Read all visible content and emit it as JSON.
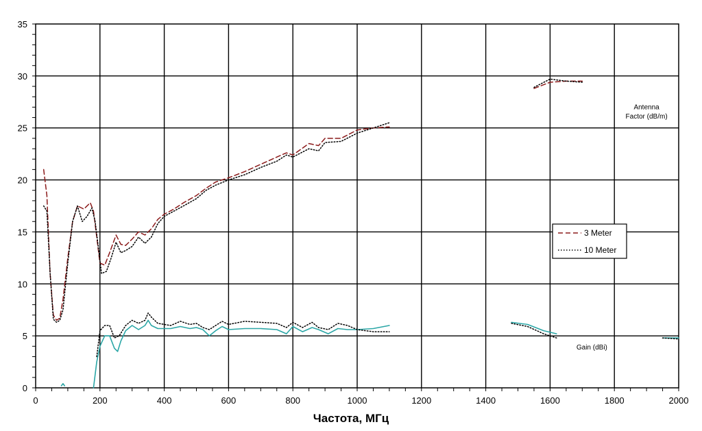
{
  "chart_data": {
    "type": "line",
    "title": "",
    "xlabel": "Частота, МГц",
    "ylabel": "",
    "xlim": [
      0,
      2000
    ],
    "ylim": [
      0,
      35
    ],
    "grid": true,
    "x_ticks": [
      0,
      200,
      400,
      600,
      800,
      1000,
      1200,
      1400,
      1600,
      1800,
      2000
    ],
    "y_ticks": [
      0,
      5,
      10,
      15,
      20,
      25,
      30,
      35
    ],
    "legend_position": "right",
    "legend": [
      {
        "label": "3 Meter",
        "style": "dashed",
        "color": "#8b1a1a"
      },
      {
        "label": "10 Meter",
        "style": "dotted",
        "color": "#000000"
      }
    ],
    "annotations": [
      {
        "text": "Antenna",
        "x": 1900,
        "y": 26.8
      },
      {
        "text": "Factor (dB/m)",
        "x": 1900,
        "y": 25.9
      },
      {
        "text": "Gain (dBi)",
        "x": 1730,
        "y": 3.7
      }
    ],
    "series": [
      {
        "name": "3 Meter",
        "group": "antenna-factor",
        "color": "#8b1a1a",
        "style": "dashed",
        "points": [
          [
            25,
            21.0
          ],
          [
            35,
            18.5
          ],
          [
            45,
            11.0
          ],
          [
            55,
            7.0
          ],
          [
            65,
            6.5
          ],
          [
            75,
            6.7
          ],
          [
            85,
            8.5
          ],
          [
            100,
            12.5
          ],
          [
            115,
            16.0
          ],
          [
            130,
            17.5
          ],
          [
            150,
            17.2
          ],
          [
            170,
            17.8
          ],
          [
            180,
            17.0
          ],
          [
            190,
            14.5
          ],
          [
            200,
            12.0
          ],
          [
            215,
            11.8
          ],
          [
            230,
            13.0
          ],
          [
            250,
            14.7
          ],
          [
            265,
            13.8
          ],
          [
            280,
            13.7
          ],
          [
            300,
            14.3
          ],
          [
            320,
            15.0
          ],
          [
            340,
            14.7
          ],
          [
            360,
            15.3
          ],
          [
            380,
            16.2
          ],
          [
            400,
            16.7
          ],
          [
            430,
            17.2
          ],
          [
            460,
            17.8
          ],
          [
            500,
            18.5
          ],
          [
            530,
            19.2
          ],
          [
            560,
            19.8
          ],
          [
            600,
            20.2
          ],
          [
            650,
            20.8
          ],
          [
            700,
            21.5
          ],
          [
            750,
            22.2
          ],
          [
            780,
            22.6
          ],
          [
            800,
            22.4
          ],
          [
            850,
            23.5
          ],
          [
            880,
            23.3
          ],
          [
            900,
            24.0
          ],
          [
            950,
            24.0
          ],
          [
            1000,
            24.8
          ],
          [
            1050,
            25.0
          ],
          [
            1100,
            25.1
          ],
          [
            1200,
            25.6
          ],
          [
            1300,
            26.6
          ],
          [
            1400,
            27.3
          ],
          [
            1480,
            27.6
          ],
          [
            1550,
            28.8
          ],
          [
            1600,
            29.4
          ],
          [
            1650,
            29.5
          ],
          [
            1700,
            29.5
          ],
          [
            1800,
            30.0
          ],
          [
            1900,
            31.0
          ],
          [
            2000,
            31.5
          ]
        ]
      },
      {
        "name": "10 Meter",
        "group": "antenna-factor",
        "color": "#000000",
        "style": "dotted",
        "points": [
          [
            25,
            17.5
          ],
          [
            35,
            17.0
          ],
          [
            45,
            11.0
          ],
          [
            55,
            6.6
          ],
          [
            65,
            6.3
          ],
          [
            75,
            6.5
          ],
          [
            85,
            7.5
          ],
          [
            100,
            12.0
          ],
          [
            115,
            16.0
          ],
          [
            130,
            17.5
          ],
          [
            145,
            16.0
          ],
          [
            160,
            16.5
          ],
          [
            175,
            17.3
          ],
          [
            185,
            16.0
          ],
          [
            195,
            13.5
          ],
          [
            205,
            11.0
          ],
          [
            220,
            11.2
          ],
          [
            235,
            12.5
          ],
          [
            250,
            14.0
          ],
          [
            265,
            13.0
          ],
          [
            280,
            13.2
          ],
          [
            300,
            13.6
          ],
          [
            320,
            14.5
          ],
          [
            340,
            13.9
          ],
          [
            360,
            14.5
          ],
          [
            380,
            15.8
          ],
          [
            400,
            16.5
          ],
          [
            430,
            17.0
          ],
          [
            460,
            17.5
          ],
          [
            500,
            18.2
          ],
          [
            530,
            19.0
          ],
          [
            560,
            19.5
          ],
          [
            600,
            20.0
          ],
          [
            650,
            20.5
          ],
          [
            700,
            21.2
          ],
          [
            750,
            21.8
          ],
          [
            780,
            22.4
          ],
          [
            800,
            22.2
          ],
          [
            850,
            23.0
          ],
          [
            880,
            22.8
          ],
          [
            900,
            23.6
          ],
          [
            950,
            23.7
          ],
          [
            1000,
            24.5
          ],
          [
            1050,
            25.0
          ],
          [
            1100,
            25.5
          ],
          [
            1200,
            26.3
          ],
          [
            1300,
            27.0
          ],
          [
            1400,
            27.2
          ],
          [
            1480,
            27.4
          ],
          [
            1550,
            28.9
          ],
          [
            1600,
            29.7
          ],
          [
            1650,
            29.5
          ],
          [
            1700,
            29.4
          ],
          [
            1800,
            30.0
          ],
          [
            1900,
            30.8
          ],
          [
            2000,
            31.4
          ]
        ]
      },
      {
        "name": "Gain 3 Meter",
        "group": "gain",
        "color": "#2aa6a6",
        "style": "solid",
        "points": [
          [
            80,
            0.2
          ],
          [
            85,
            0.4
          ],
          [
            90,
            0.2
          ],
          [
            180,
            0
          ],
          [
            190,
            2.5
          ],
          [
            200,
            4.0
          ],
          [
            215,
            5.0
          ],
          [
            230,
            5.0
          ],
          [
            245,
            3.8
          ],
          [
            255,
            3.5
          ],
          [
            265,
            4.5
          ],
          [
            280,
            5.5
          ],
          [
            300,
            6.0
          ],
          [
            320,
            5.6
          ],
          [
            340,
            6.0
          ],
          [
            350,
            6.5
          ],
          [
            360,
            6.0
          ],
          [
            380,
            5.7
          ],
          [
            420,
            5.7
          ],
          [
            450,
            5.9
          ],
          [
            480,
            5.7
          ],
          [
            500,
            5.8
          ],
          [
            520,
            5.6
          ],
          [
            540,
            5.0
          ],
          [
            560,
            5.5
          ],
          [
            580,
            5.9
          ],
          [
            600,
            5.6
          ],
          [
            650,
            5.7
          ],
          [
            700,
            5.7
          ],
          [
            750,
            5.6
          ],
          [
            780,
            5.2
          ],
          [
            800,
            5.9
          ],
          [
            830,
            5.4
          ],
          [
            860,
            5.8
          ],
          [
            880,
            5.6
          ],
          [
            910,
            5.2
          ],
          [
            940,
            5.7
          ],
          [
            970,
            5.6
          ],
          [
            1000,
            5.6
          ],
          [
            1050,
            5.7
          ],
          [
            1100,
            6.0
          ],
          [
            1200,
            6.1
          ],
          [
            1300,
            6.0
          ],
          [
            1400,
            6.2
          ],
          [
            1480,
            6.3
          ],
          [
            1530,
            6.1
          ],
          [
            1580,
            5.5
          ],
          [
            1620,
            5.2
          ],
          [
            1700,
            5.5
          ],
          [
            1800,
            5.4
          ],
          [
            1880,
            5.0
          ],
          [
            1950,
            4.8
          ],
          [
            2000,
            4.8
          ]
        ]
      },
      {
        "name": "Gain 10 Meter",
        "group": "gain",
        "color": "#000000",
        "style": "dotted",
        "points": [
          [
            190,
            3.0
          ],
          [
            200,
            5.5
          ],
          [
            215,
            6.0
          ],
          [
            230,
            6.0
          ],
          [
            245,
            4.8
          ],
          [
            260,
            5.0
          ],
          [
            280,
            6.0
          ],
          [
            300,
            6.5
          ],
          [
            320,
            6.2
          ],
          [
            340,
            6.5
          ],
          [
            350,
            7.2
          ],
          [
            360,
            6.8
          ],
          [
            380,
            6.2
          ],
          [
            420,
            6.0
          ],
          [
            450,
            6.4
          ],
          [
            480,
            6.1
          ],
          [
            500,
            6.2
          ],
          [
            520,
            5.8
          ],
          [
            540,
            5.6
          ],
          [
            560,
            6.0
          ],
          [
            580,
            6.4
          ],
          [
            600,
            6.1
          ],
          [
            650,
            6.4
          ],
          [
            700,
            6.3
          ],
          [
            750,
            6.2
          ],
          [
            780,
            5.8
          ],
          [
            800,
            6.3
          ],
          [
            830,
            5.8
          ],
          [
            860,
            6.3
          ],
          [
            880,
            5.8
          ],
          [
            910,
            5.6
          ],
          [
            940,
            6.2
          ],
          [
            970,
            6.0
          ],
          [
            1000,
            5.6
          ],
          [
            1050,
            5.4
          ],
          [
            1100,
            5.4
          ],
          [
            1200,
            5.5
          ],
          [
            1300,
            5.6
          ],
          [
            1400,
            6.2
          ],
          [
            1480,
            6.2
          ],
          [
            1530,
            5.9
          ],
          [
            1580,
            5.2
          ],
          [
            1620,
            4.8
          ],
          [
            1700,
            5.3
          ],
          [
            1800,
            5.5
          ],
          [
            1880,
            5.2
          ],
          [
            1950,
            4.8
          ],
          [
            2000,
            4.7
          ]
        ]
      }
    ]
  }
}
